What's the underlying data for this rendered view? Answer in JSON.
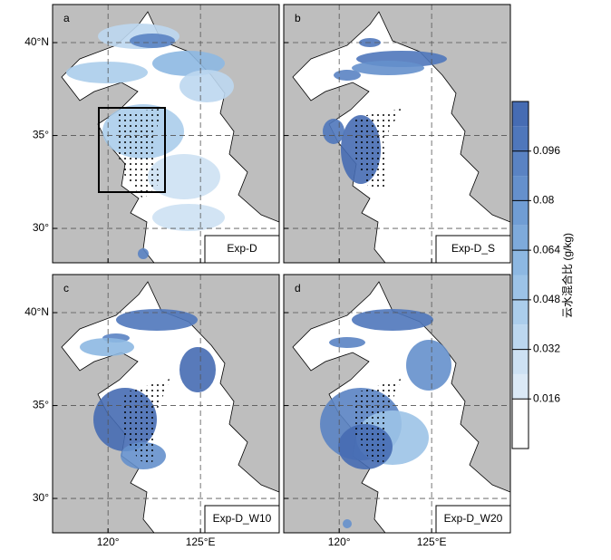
{
  "panels": [
    {
      "letter": "a",
      "experiment": "Exp-D"
    },
    {
      "letter": "b",
      "experiment": "Exp-D_S"
    },
    {
      "letter": "c",
      "experiment": "Exp-D_W10"
    },
    {
      "letter": "d",
      "experiment": "Exp-D_W20"
    }
  ],
  "map": {
    "xlim": [
      117,
      129.26
    ],
    "ylim": [
      28.15,
      42.05
    ],
    "xticks": [
      {
        "value": 120,
        "label": "120°"
      },
      {
        "value": 125,
        "label": "125°E"
      }
    ],
    "yticks": [
      {
        "value": 40,
        "label": "40°N"
      },
      {
        "value": 35,
        "label": "35°"
      },
      {
        "value": 30,
        "label": "30°"
      }
    ]
  },
  "colorbar": {
    "label": "云水混合比 (g/kg)",
    "lim": [
      0,
      0.112
    ],
    "ticks": [
      0.016,
      0.032,
      0.048,
      0.064,
      0.08,
      0.096
    ],
    "levels": [
      0.016,
      0.024,
      0.032,
      0.04,
      0.048,
      0.056,
      0.064,
      0.072,
      0.08,
      0.088,
      0.096,
      0.104
    ],
    "colors": [
      "#dbe9f6",
      "#cde1f3",
      "#bcd7ef",
      "#abcdeb",
      "#9cc3e7",
      "#8db8e2",
      "#7eaadb",
      "#709dd4",
      "#6590cc",
      "#5a83c3",
      "#4f77bb",
      "#466cb3"
    ]
  }
}
